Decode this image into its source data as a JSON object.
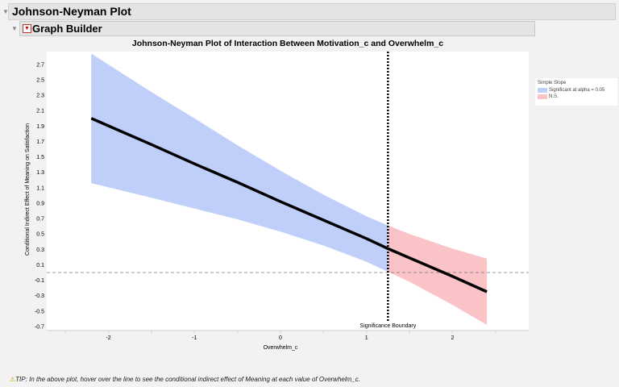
{
  "outline": {
    "title": "Johnson-Neyman Plot",
    "sub_title": "Graph Builder"
  },
  "chart_data": {
    "type": "line",
    "title": "Johnson-Neyman Plot of Interaction Between Motivation_c and Overwhelm_c",
    "xlabel": "Overwhelm_c",
    "ylabel": "Conditional Indirect Effect of Meaning on Satisfaction",
    "xlim": [
      -2.65,
      2.9
    ],
    "ylim": [
      -0.8,
      2.95
    ],
    "xticks": [
      "-2",
      "-1",
      "0",
      "1",
      "2"
    ],
    "yticks": [
      "2.7",
      "2.5",
      "2.3",
      "2.1",
      "1.9",
      "1.7",
      "1.5",
      "1.3",
      "1.1",
      "0.9",
      "0.7",
      "0.5",
      "0.3",
      "0.1",
      "-0.1",
      "-0.3",
      "-0.5",
      "-0.7"
    ],
    "x": [
      -2.2,
      -1.5,
      -1,
      -0.5,
      0,
      0.5,
      1,
      1.25,
      1.5,
      2,
      2.4
    ],
    "effect": [
      2.0,
      1.66,
      1.41,
      1.17,
      0.92,
      0.68,
      0.44,
      0.31,
      0.19,
      -0.05,
      -0.25
    ],
    "upper": [
      2.84,
      2.34,
      2.0,
      1.65,
      1.32,
      1.01,
      0.73,
      0.61,
      0.5,
      0.31,
      0.18
    ],
    "lower": [
      1.16,
      0.97,
      0.83,
      0.69,
      0.53,
      0.35,
      0.14,
      0.01,
      -0.12,
      -0.42,
      -0.68
    ],
    "reference_y": 0,
    "significance_boundary": 1.25,
    "boundary_label": "Significance Boundary",
    "legend": {
      "title": "Simple Slope",
      "position": "right",
      "items": [
        {
          "label": "Significant at alpha = 0.05",
          "color": "#c0cefa"
        },
        {
          "label": "N.S.",
          "color": "#f9c3c7"
        }
      ]
    }
  },
  "tip": {
    "icon": "warning-icon",
    "text": "TIP: In the above plot, hover over the line to see the conditional indirect effect of Meaning at each value of Overwhelm_c."
  }
}
